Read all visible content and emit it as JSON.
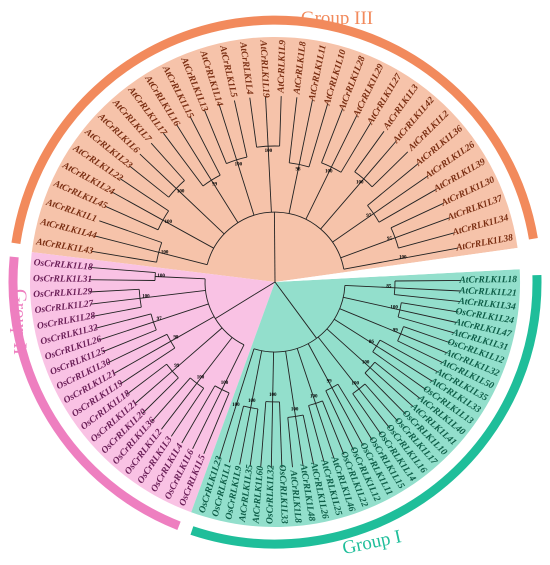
{
  "figure": {
    "groups": [
      {
        "id": "III",
        "label": "Group III",
        "color": "#F28A5C",
        "fill": "#F6C3AA",
        "text_color": "#7A2E12"
      },
      {
        "id": "II",
        "label": "Group II",
        "color": "#EE7FC0",
        "fill": "#F9C2E4",
        "text_color": "#6A1E57"
      },
      {
        "id": "I",
        "label": "Group I",
        "color": "#1FBE9A",
        "fill": "#93DFCC",
        "text_color": "#0E5E48"
      }
    ],
    "leaves": {
      "group_III": [
        "AtCrRLK1L43",
        "AtCrRLK1L44",
        "AtCrRLK1L1",
        "AtCrRLK1L45",
        "AtCrRLK1L24",
        "AtCrRLK1L22",
        "AtCrRLK1L23",
        "AtCrRLK1L6",
        "AtCrRLK1L7",
        "AtCrRLK1L17",
        "AtCrRLK1L16",
        "AtCrRLK1L15",
        "AtCrRLK1L13",
        "AtCrRLK1L14",
        "AtCrRLK1L5",
        "AtCrRLK1L4",
        "AtCrRLK1L19",
        "AtCrRLK1L9",
        "AtCrRLK1L8",
        "AtCrRLK1L11",
        "AtCrRLK1L10",
        "AtCrRLK1L28",
        "AtCrRLK1L29",
        "AtCrRLK1L27",
        "AtCrRLK1L3",
        "AtCrRLK1L42",
        "AtCrRLK1L2",
        "AtCrRLK1L36",
        "AtCrRLK1L26",
        "AtCrRLK1L39",
        "AtCrRLK1L30",
        "AtCrRLK1L37",
        "AtCrRLK1L34",
        "AtCrRLK1L38"
      ],
      "group_II": [
        "OsCrRLK1L5",
        "OsCrRLK1L6",
        "OsCrRLK1L4",
        "OsCrRLK1L3",
        "OsCrRLK1L2",
        "OsCrRLK1L36",
        "OsCrRLK1L20",
        "OsCrRLK1L21",
        "OsCrRLK1L18",
        "OsCrRLK1L19",
        "OsCrRLK1L21",
        "OsCrRLK1L30",
        "OsCrRLK1L25",
        "OsCrRLK1L26",
        "OsCrRLK1L32",
        "OsCrRLK1L28",
        "OsCrRLK1L27",
        "OsCrRLK1L29",
        "OsCrRLK1L31",
        "OsCrRLK1L18"
      ],
      "group_I": [
        "AtCrRLK1L18",
        "AtCrRLK1L21",
        "AtCrRLK1L34",
        "OsCrRLK1L24",
        "AtCrRLK1L47",
        "AtCrRLK1L31",
        "OsCrRLK1L12",
        "AtCrRLK1L32",
        "AtCrRLK1L50",
        "AtCrRLK1L35",
        "AtCrRLK1L33",
        "OsCrRLK1L13",
        "AtCrRLK1L40",
        "AtCrRLK1L41",
        "OsCrRLK1L10",
        "OsCrRLK1L17",
        "OsCrRLK1L16",
        "OsCrRLK1L14",
        "OsCrRLK1L15",
        "OsCrRLK1L11",
        "OsCrRLK1L12",
        "OsCrRLK1L22",
        "AtCrRLK1L46",
        "AtCrRLK1L25",
        "AtCrRLK1L26",
        "AtCrRLK1L48",
        "AtCrRLK1L8",
        "OsCrRLK1L33",
        "OsCrRLK1L32",
        "AtCrRLK1L60",
        "AtCrRLK1L35",
        "OsCrRLK1L9",
        "OsCrRLK1L1",
        "OsCrRLK1L23"
      ]
    },
    "bootstrap_labels": [
      "100",
      "100",
      "100",
      "99",
      "100",
      "100",
      "98",
      "100",
      "100",
      "97",
      "95",
      "100",
      "100",
      "100",
      "99",
      "98",
      "97",
      "100",
      "100",
      "85",
      "100",
      "99",
      "86",
      "100",
      "100",
      "99",
      "100",
      "100",
      "100",
      "100",
      "100",
      "100",
      "95",
      "100",
      "100",
      "99",
      "97",
      "100",
      "100",
      "100",
      "100",
      "98",
      "100",
      "100",
      "99",
      "96",
      "100",
      "100",
      "100",
      "100",
      "99",
      "94",
      "100",
      "100"
    ]
  }
}
